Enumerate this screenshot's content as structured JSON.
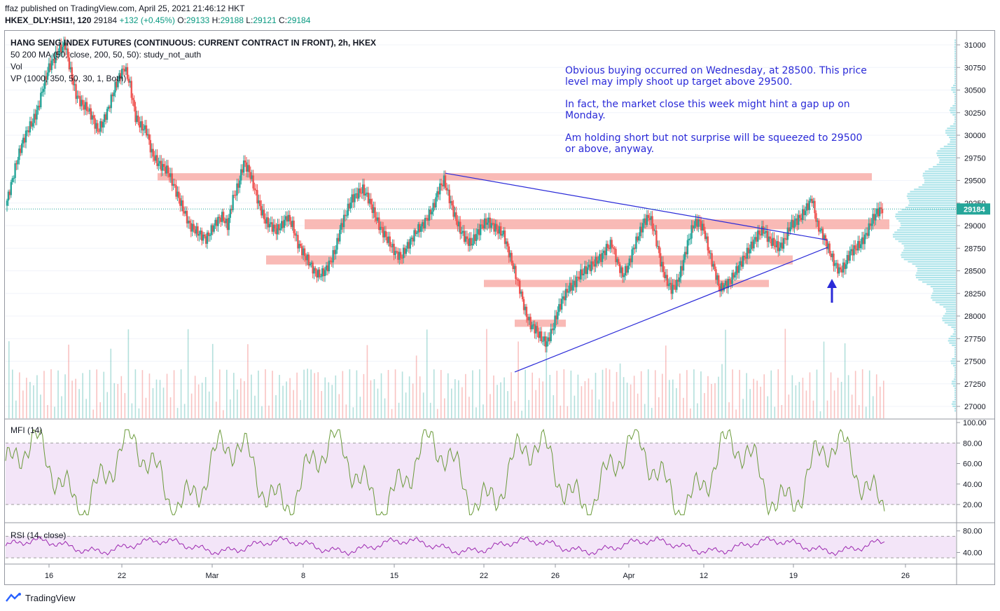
{
  "header": {
    "published": "ffaz published on TradingView.com, April 25, 2021 21:46:12 HKT",
    "symbol": "HKEX_DLY:HSI1!, 120",
    "last": "29184",
    "change": "+132 (+0.45%)",
    "o_label": "O:",
    "o": "29133",
    "h_label": "H:",
    "h": "29188",
    "l_label": "L:",
    "l": "29121",
    "c_label": "C:",
    "c": "29184"
  },
  "legend": {
    "title": "HANG SENG INDEX FUTURES (CONTINUOUS: CURRENT CONTRACT IN FRONT), 2h, HKEX",
    "ma": "50 200 MA (50, close, 200, 50, 50): study_not_auth",
    "vol": "Vol",
    "vp": "VP (1000, 350, 50, 30, 1, Both)",
    "mfi": "MFI (14)",
    "rsi": "RSI (14, close)"
  },
  "annotation": {
    "p1": "Obvious buying occurred on Wednesday, at 28500. This price level may imply shoot up target above 29500.",
    "p2": "In fact, the market close this week might hint a gap up on Monday.",
    "p3": "Am holding short but not surprise will be squeezed to 29500 or above, anyway."
  },
  "footer": {
    "brand": "TradingView"
  },
  "colors": {
    "up": "#26a69a",
    "down": "#ef5350",
    "zone": "#f8a9a4",
    "trend": "#2a2ad8",
    "mfi": "#6a9a3a",
    "rsi": "#9c27b0",
    "mfi_band": "#f3e5f8"
  },
  "chart_data": {
    "type": "candlestick",
    "x_ticks": [
      "16",
      "22",
      "Mar",
      "8",
      "15",
      "22",
      "26",
      "Apr",
      "12",
      "19",
      "26"
    ],
    "y_ticks": [
      31000,
      30750,
      30500,
      30250,
      30000,
      29750,
      29500,
      29250,
      29000,
      28750,
      28500,
      28250,
      28000,
      27750,
      27500,
      27250,
      27000
    ],
    "ylim": [
      26900,
      31200
    ],
    "last_price": 29184,
    "price_path": [
      29220,
      29450,
      29700,
      29900,
      30050,
      30150,
      30300,
      30550,
      30750,
      30850,
      30950,
      31000,
      30700,
      30450,
      30350,
      30300,
      30200,
      30050,
      30150,
      30300,
      30500,
      30650,
      30750,
      30550,
      30200,
      30100,
      30050,
      29800,
      29700,
      29650,
      29600,
      29450,
      29300,
      29150,
      29000,
      28950,
      28900,
      28850,
      28950,
      29050,
      29100,
      29000,
      29300,
      29450,
      29700,
      29600,
      29400,
      29200,
      29050,
      29000,
      28950,
      29000,
      29100,
      29000,
      28800,
      28700,
      28600,
      28500,
      28450,
      28500,
      28600,
      28750,
      29000,
      29150,
      29300,
      29350,
      29400,
      29300,
      29150,
      29000,
      28900,
      28800,
      28700,
      28650,
      28750,
      28850,
      28950,
      29000,
      29100,
      29200,
      29400,
      29500,
      29300,
      29100,
      28950,
      28850,
      28800,
      28900,
      29000,
      29050,
      29000,
      28950,
      28900,
      28700,
      28500,
      28300,
      28050,
      27900,
      27850,
      27750,
      27700,
      27850,
      28050,
      28200,
      28300,
      28350,
      28450,
      28500,
      28550,
      28600,
      28650,
      28750,
      28800,
      28600,
      28450,
      28550,
      28750,
      28900,
      29050,
      29100,
      28900,
      28600,
      28400,
      28300,
      28350,
      28550,
      28800,
      29000,
      29050,
      28950,
      28700,
      28500,
      28300,
      28350,
      28400,
      28500,
      28600,
      28700,
      28800,
      28900,
      28950,
      28850,
      28800,
      28750,
      28850,
      29000,
      29050,
      29100,
      29200,
      29300,
      29000,
      28900,
      28750,
      28600,
      28500,
      28550,
      28700,
      28750,
      28800,
      28900,
      29050,
      29150,
      29184
    ],
    "resistance_zones": [
      {
        "low": 29500,
        "high": 29580,
        "from": "Feb 25",
        "to": "Apr 20"
      },
      {
        "low": 28960,
        "high": 29070,
        "from": "Mar 5",
        "to": "Apr 23"
      },
      {
        "low": 28570,
        "high": 28670,
        "from": "Mar 4",
        "to": "Apr 16"
      },
      {
        "low": 28320,
        "high": 28400,
        "from": "Mar 22",
        "to": "Apr 17"
      },
      {
        "low": 27880,
        "high": 27960,
        "from": "Mar 24",
        "to": "Mar 26"
      }
    ],
    "trendlines": [
      {
        "from": [
          "Mar 18",
          29580
        ],
        "to": [
          "Apr 20",
          28840
        ]
      },
      {
        "from": [
          "Mar 24",
          27380
        ],
        "to": [
          "Apr 20",
          28760
        ]
      }
    ],
    "mfi": {
      "name": "MFI (14)",
      "ticks": [
        100,
        80,
        60,
        40,
        20
      ],
      "band": [
        20,
        80
      ]
    },
    "rsi": {
      "name": "RSI (14, close)",
      "ticks": [
        80,
        40
      ],
      "band": [
        30,
        70
      ]
    }
  }
}
